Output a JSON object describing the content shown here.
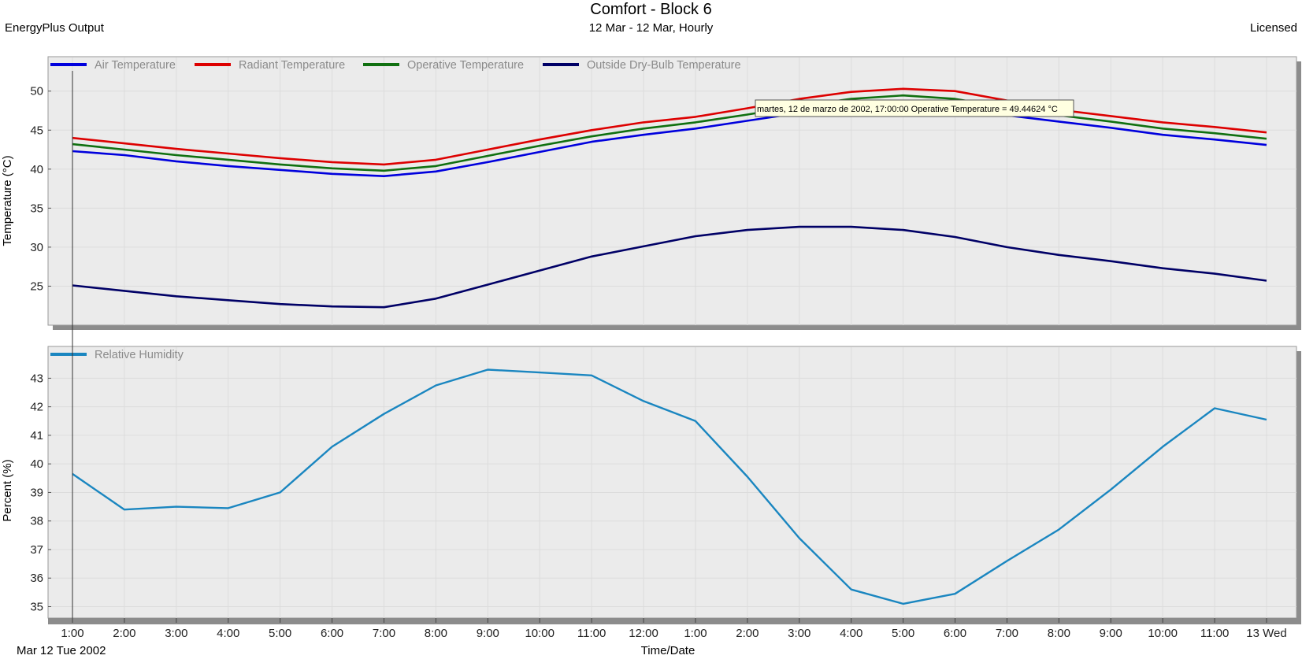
{
  "header": {
    "title": "Comfort - Block 6",
    "subtitle": "12 Mar - 12 Mar, Hourly",
    "left": "EnergyPlus Output",
    "right": "Licensed"
  },
  "footer": {
    "xlabel": "Time/Date",
    "date_label": "Mar  12 Tue 2002"
  },
  "tooltip": {
    "text": "martes, 12 de marzo de 2002, 17:00:00  Operative Temperature = 49.44624 °C"
  },
  "chart_data": [
    {
      "type": "line",
      "ylabel": "Temperature (°C)",
      "ylim": [
        20,
        53
      ],
      "yticks": [
        25,
        30,
        35,
        40,
        45,
        50
      ],
      "grid": true,
      "legend_position": "top-left",
      "x": [
        "1:00",
        "2:00",
        "3:00",
        "4:00",
        "5:00",
        "6:00",
        "7:00",
        "8:00",
        "9:00",
        "10:00",
        "11:00",
        "12:00",
        "1:00",
        "2:00",
        "3:00",
        "4:00",
        "5:00",
        "6:00",
        "7:00",
        "8:00",
        "9:00",
        "10:00",
        "11:00",
        "13 Wed"
      ],
      "series": [
        {
          "name": "Air Temperature",
          "color": "#0000dd",
          "values": [
            42.3,
            41.8,
            41.0,
            40.4,
            39.9,
            39.4,
            39.1,
            39.7,
            40.9,
            42.2,
            43.5,
            44.4,
            45.2,
            46.2,
            47.2,
            48.1,
            48.5,
            48.0,
            46.9,
            46.1,
            45.3,
            44.4,
            43.8,
            43.1
          ]
        },
        {
          "name": "Radiant Temperature",
          "color": "#dd0000",
          "values": [
            44.0,
            43.3,
            42.6,
            42.0,
            41.4,
            40.9,
            40.6,
            41.2,
            42.5,
            43.8,
            45.0,
            46.0,
            46.7,
            47.8,
            49.0,
            49.9,
            50.3,
            50.0,
            48.8,
            47.6,
            46.8,
            46.0,
            45.4,
            44.7
          ]
        },
        {
          "name": "Operative Temperature",
          "color": "#107010",
          "values": [
            43.2,
            42.5,
            41.8,
            41.2,
            40.6,
            40.1,
            39.8,
            40.4,
            41.7,
            43.0,
            44.2,
            45.2,
            46.0,
            47.0,
            48.1,
            49.0,
            49.45,
            49.0,
            47.9,
            46.9,
            46.1,
            45.2,
            44.6,
            43.9
          ]
        },
        {
          "name": "Outside Dry-Bulb Temperature",
          "color": "#000066",
          "values": [
            25.1,
            24.4,
            23.7,
            23.2,
            22.7,
            22.4,
            22.3,
            23.4,
            25.2,
            27.0,
            28.8,
            30.1,
            31.4,
            32.2,
            32.6,
            32.6,
            32.2,
            31.3,
            30.0,
            29.0,
            28.2,
            27.3,
            26.6,
            25.7
          ]
        }
      ]
    },
    {
      "type": "line",
      "ylabel": "Percent (%)",
      "ylim": [
        34.6,
        43.7
      ],
      "yticks": [
        35,
        36,
        37,
        38,
        39,
        40,
        41,
        42,
        43
      ],
      "grid": true,
      "legend_position": "top-left",
      "x": [
        "1:00",
        "2:00",
        "3:00",
        "4:00",
        "5:00",
        "6:00",
        "7:00",
        "8:00",
        "9:00",
        "10:00",
        "11:00",
        "12:00",
        "1:00",
        "2:00",
        "3:00",
        "4:00",
        "5:00",
        "6:00",
        "7:00",
        "8:00",
        "9:00",
        "10:00",
        "11:00",
        "13 Wed"
      ],
      "series": [
        {
          "name": "Relative Humidity",
          "color": "#1a86c0",
          "values": [
            39.65,
            38.4,
            38.5,
            38.45,
            39.0,
            40.6,
            41.75,
            42.75,
            43.3,
            43.2,
            43.1,
            42.2,
            41.5,
            39.55,
            37.4,
            35.6,
            35.1,
            35.45,
            36.6,
            37.7,
            39.1,
            40.6,
            41.95,
            41.55
          ]
        }
      ]
    }
  ]
}
